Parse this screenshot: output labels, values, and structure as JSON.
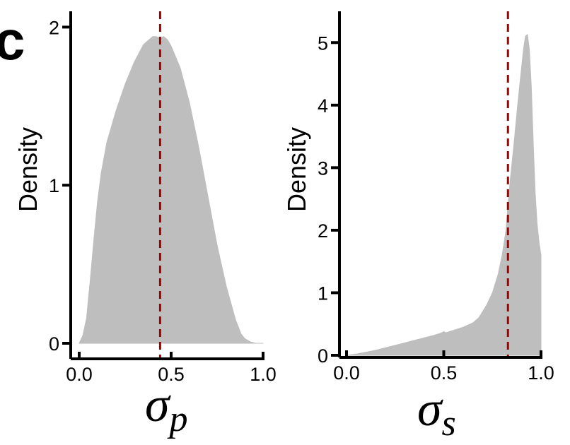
{
  "panel_label": "c",
  "chart_data": [
    {
      "type": "area",
      "title": "",
      "ylabel": "Density",
      "xlabel_symbol": "σ",
      "xlabel_subscript": "p",
      "xlim": [
        0.0,
        1.0
      ],
      "ylim": [
        0,
        2.1
      ],
      "x_ticks": [
        0.0,
        0.5,
        1.0
      ],
      "x_tick_labels": [
        "0.0",
        "0.5",
        "1.0"
      ],
      "y_ticks": [
        0,
        1,
        2
      ],
      "y_tick_labels": [
        "0",
        "1",
        "2"
      ],
      "fill_color": "#bebebe",
      "reference_line": {
        "x": 0.44,
        "color": "#a50000",
        "style": "dashed"
      },
      "x": [
        0.0,
        0.02,
        0.04,
        0.06,
        0.08,
        0.1,
        0.12,
        0.15,
        0.2,
        0.25,
        0.3,
        0.35,
        0.4,
        0.42,
        0.44,
        0.46,
        0.48,
        0.5,
        0.55,
        0.6,
        0.65,
        0.7,
        0.75,
        0.8,
        0.85,
        0.88,
        0.9,
        0.93,
        0.96,
        1.0
      ],
      "y": [
        0.0,
        0.05,
        0.16,
        0.4,
        0.66,
        0.9,
        1.08,
        1.27,
        1.47,
        1.64,
        1.78,
        1.89,
        1.94,
        1.94,
        1.93,
        1.94,
        1.92,
        1.88,
        1.74,
        1.52,
        1.24,
        0.93,
        0.62,
        0.36,
        0.15,
        0.06,
        0.03,
        0.01,
        0.0,
        0.0
      ]
    },
    {
      "type": "area",
      "title": "",
      "ylabel": "Density",
      "xlabel_symbol": "σ",
      "xlabel_subscript": "s",
      "xlim": [
        0.0,
        1.0
      ],
      "ylim": [
        0,
        5.5
      ],
      "x_ticks": [
        0.0,
        0.5,
        1.0
      ],
      "x_tick_labels": [
        "0.0",
        "0.5",
        "1.0"
      ],
      "y_ticks": [
        0,
        1,
        2,
        3,
        4,
        5
      ],
      "y_tick_labels": [
        "0",
        "1",
        "2",
        "3",
        "4",
        "5"
      ],
      "fill_color": "#bebebe",
      "reference_line": {
        "x": 0.83,
        "color": "#a50000",
        "style": "dashed"
      },
      "x": [
        0.0,
        0.05,
        0.1,
        0.15,
        0.2,
        0.25,
        0.3,
        0.35,
        0.4,
        0.45,
        0.49,
        0.5,
        0.51,
        0.55,
        0.6,
        0.65,
        0.68,
        0.7,
        0.72,
        0.75,
        0.78,
        0.8,
        0.82,
        0.83,
        0.84,
        0.86,
        0.88,
        0.9,
        0.91,
        0.92,
        0.93,
        0.94,
        0.95,
        0.96,
        0.97,
        0.98,
        0.99,
        1.0
      ],
      "y": [
        0.0,
        0.02,
        0.05,
        0.08,
        0.12,
        0.16,
        0.2,
        0.24,
        0.28,
        0.32,
        0.36,
        0.38,
        0.36,
        0.4,
        0.45,
        0.52,
        0.6,
        0.7,
        0.8,
        1.0,
        1.3,
        1.6,
        2.0,
        2.4,
        2.75,
        3.35,
        4.0,
        4.6,
        4.9,
        5.1,
        5.13,
        4.9,
        4.3,
        3.4,
        2.6,
        2.1,
        1.8,
        1.6
      ]
    }
  ]
}
